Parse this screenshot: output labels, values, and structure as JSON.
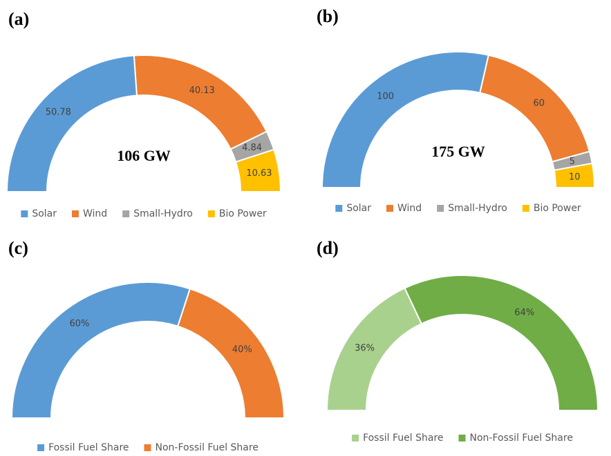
{
  "chart_data": [
    {
      "type": "semi-donut",
      "title": "(a)",
      "center_label": "106 GW",
      "categories": [
        "Solar",
        "Wind",
        "Small-Hydro",
        "Bio Power"
      ],
      "values": [
        50.78,
        40.13,
        4.84,
        10.63
      ],
      "colors": [
        "#5b9bd5",
        "#ed7d31",
        "#a5a5a5",
        "#ffc000"
      ]
    },
    {
      "type": "semi-donut",
      "title": "(b)",
      "center_label": "175 GW",
      "categories": [
        "Solar",
        "Wind",
        "Small-Hydro",
        "Bio Power"
      ],
      "values": [
        100,
        60,
        5,
        10
      ],
      "colors": [
        "#5b9bd5",
        "#ed7d31",
        "#a5a5a5",
        "#ffc000"
      ]
    },
    {
      "type": "semi-donut",
      "title": "(c)",
      "categories": [
        "Fossil Fuel Share",
        "Non-Fossil Fuel Share"
      ],
      "values": [
        60,
        40
      ],
      "value_labels": [
        "60%",
        "40%"
      ],
      "colors": [
        "#5b9bd5",
        "#ed7d31"
      ]
    },
    {
      "type": "semi-donut",
      "title": "(d)",
      "categories": [
        "Fossil Fuel Share",
        "Non-Fossil Fuel Share"
      ],
      "values": [
        36,
        64
      ],
      "value_labels": [
        "36%",
        "64%"
      ],
      "colors": [
        "#a9d18e",
        "#70ad47"
      ]
    }
  ]
}
